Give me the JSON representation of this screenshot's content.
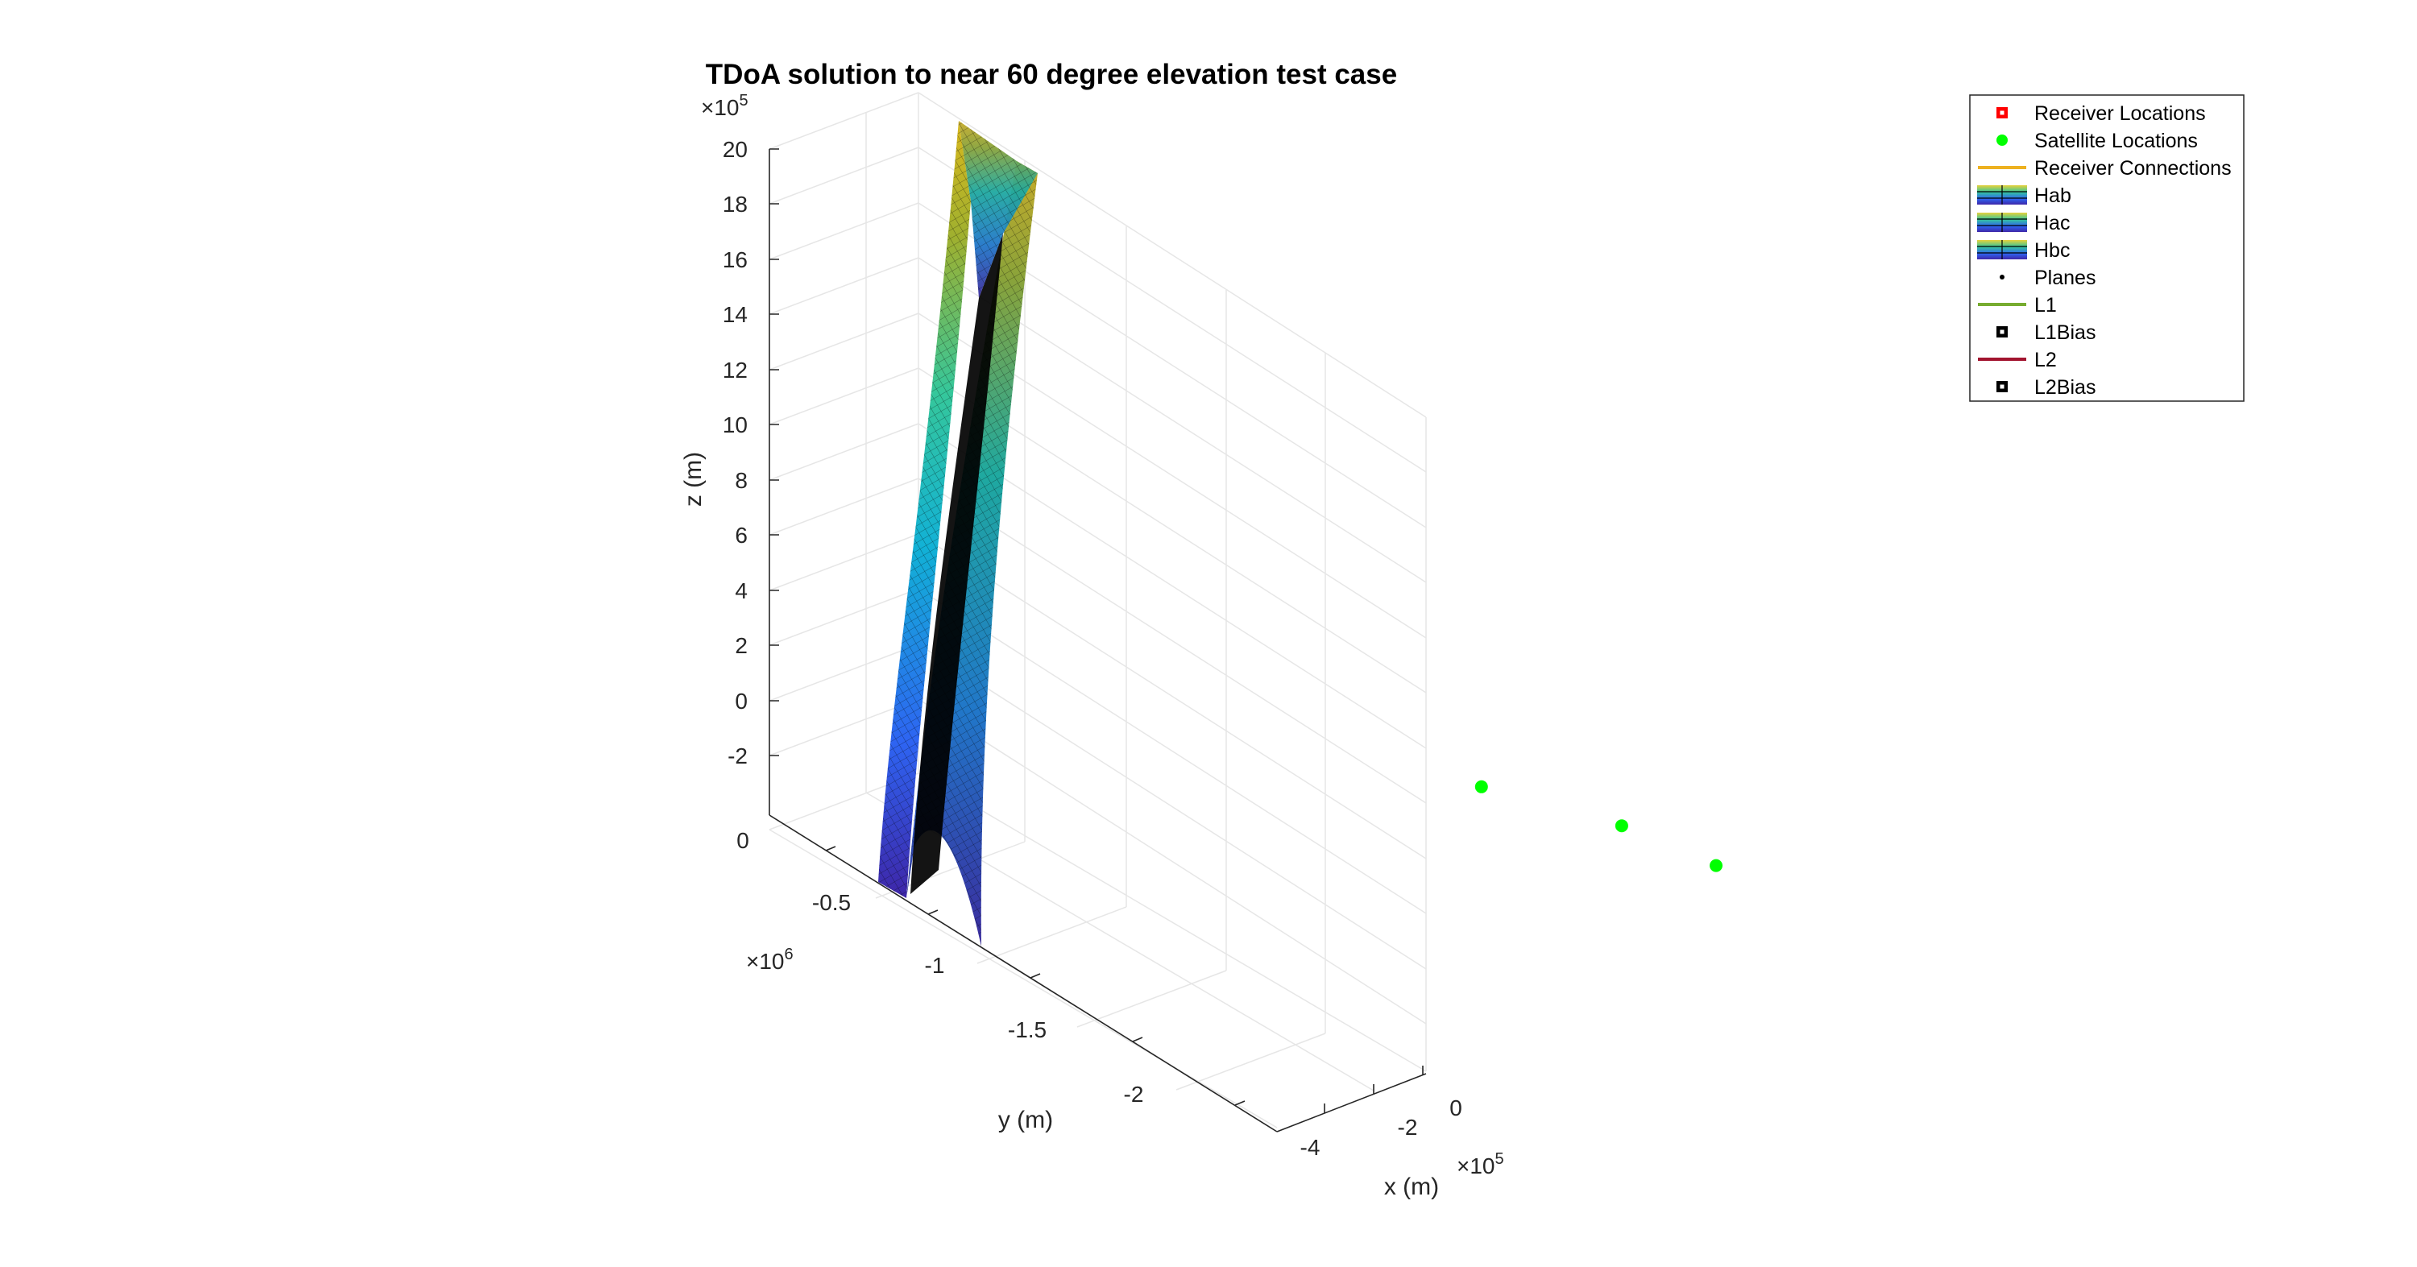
{
  "chart_data": {
    "type": "surface3d",
    "title": "TDoA solution to near 60 degree elevation test case",
    "xlabel": "x (m)",
    "ylabel": "y (m)",
    "zlabel": "z (m)",
    "x_exponent": "×10",
    "x_exponent_power": "5",
    "y_exponent": "×10",
    "y_exponent_power": "6",
    "z_exponent": "×10",
    "z_exponent_power": "5",
    "x_ticks": [
      "-4",
      "-2",
      "0"
    ],
    "y_ticks": [
      "0",
      "-0.5",
      "-1",
      "-1.5",
      "-2"
    ],
    "z_ticks": [
      "20",
      "18",
      "16",
      "14",
      "12",
      "10",
      "8",
      "6",
      "4",
      "2",
      "0",
      "-2"
    ],
    "xlim": [
      -5,
      1
    ],
    "ylim": [
      -2.4,
      0.1
    ],
    "zlim": [
      -3,
      21
    ],
    "grid": true,
    "legend_position": "top-right",
    "legend": [
      {
        "name": "Receiver Locations",
        "kind": "square-marker",
        "color": "#ff0000"
      },
      {
        "name": "Satellite Locations",
        "kind": "dot-marker",
        "color": "#00ff00"
      },
      {
        "name": "Receiver Connections",
        "kind": "line",
        "color": "#edb120"
      },
      {
        "name": "Hab",
        "kind": "surface",
        "color": "#3b6fd1"
      },
      {
        "name": "Hac",
        "kind": "surface",
        "color": "#3b6fd1"
      },
      {
        "name": "Hbc",
        "kind": "surface",
        "color": "#3b6fd1"
      },
      {
        "name": "Planes",
        "kind": "dot",
        "color": "#000000"
      },
      {
        "name": "L1",
        "kind": "line",
        "color": "#77ac30"
      },
      {
        "name": "L1Bias",
        "kind": "square-marker",
        "color": "#000000"
      },
      {
        "name": "L2",
        "kind": "line",
        "color": "#a2142f"
      },
      {
        "name": "L2Bias",
        "kind": "square-marker",
        "color": "#000000"
      }
    ],
    "satellites": [
      {
        "x": -0.2,
        "y": -0.3,
        "z": 6.1
      },
      {
        "x": -0.3,
        "y": -1.0,
        "z": 1.5
      },
      {
        "x": -4.0,
        "y": -2.0,
        "z": -3.0
      }
    ],
    "colormap": "parula",
    "colors": {
      "satellite": "#00ff00",
      "axis": "#262626",
      "grid": "#e6e6e6"
    }
  }
}
